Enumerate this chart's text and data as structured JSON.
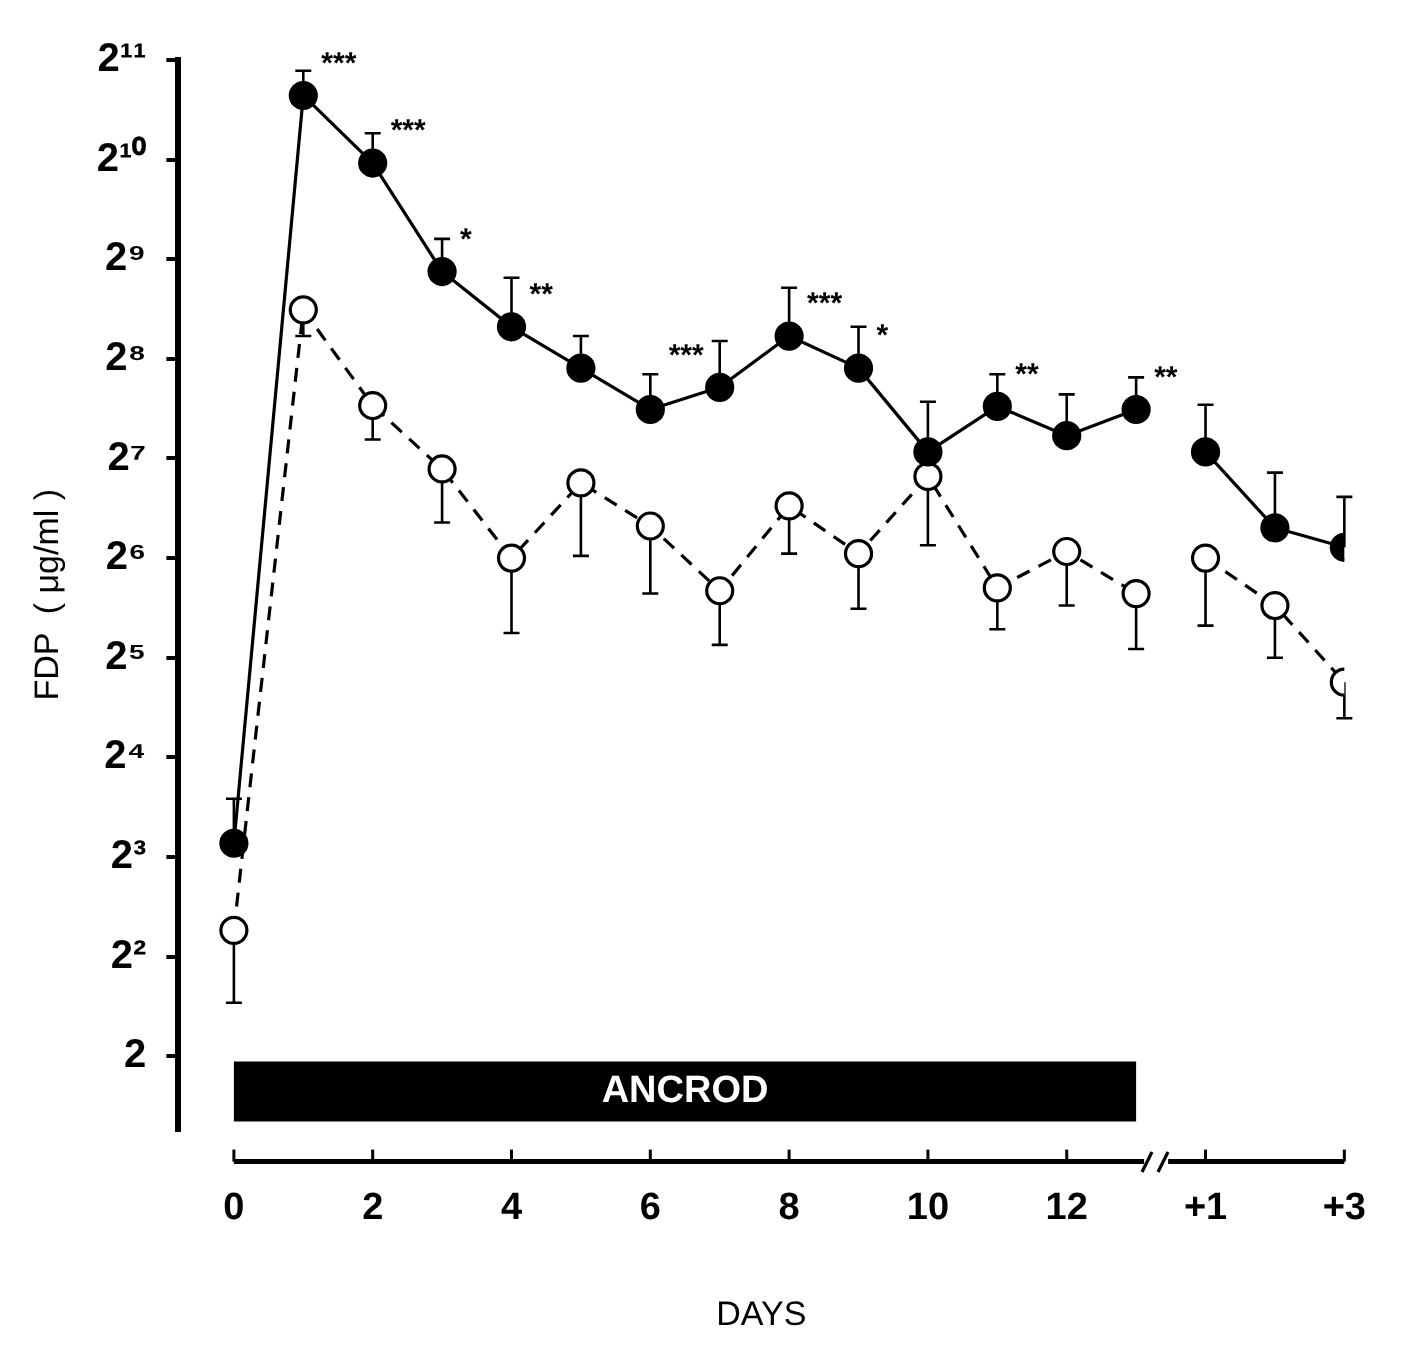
{
  "chart_data": {
    "type": "line",
    "xlabel": "DAYS",
    "ylabel": "FDP  ( μg/ml )",
    "log": "y",
    "grid": false,
    "legend": false,
    "xlim": [
      -0.8,
      16
    ],
    "xticks": [
      0,
      2,
      4,
      6,
      8,
      10,
      12
    ],
    "x2lim": [
      -13.8,
      3
    ],
    "x2ticks": [
      {
        "value": 1,
        "label": "+1"
      },
      {
        "value": 3,
        "label": "+3"
      }
    ],
    "ylim": [
      1.2,
      2048
    ],
    "yticks": [
      2,
      {
        "value": 4,
        "label": "2²"
      },
      {
        "value": 8,
        "label": "2³"
      },
      {
        "value": 16,
        "label": "2⁴"
      },
      {
        "value": 32,
        "label": "2⁵"
      },
      {
        "value": 64,
        "label": "2⁶"
      },
      {
        "value": 128,
        "label": "2⁷"
      },
      {
        "value": 256,
        "label": "2⁸"
      },
      {
        "value": 512,
        "label": "2⁹"
      },
      {
        "value": 1024,
        "label": "2¹⁰"
      },
      {
        "value": 2048,
        "label": "2¹¹"
      }
    ],
    "bands": [
      {
        "axis": "x",
        "from": 0,
        "to": 13,
        "label": "ANCROD",
        "color": "#000000"
      }
    ],
    "series": [
      {
        "color": "#000000",
        "marker": "circle",
        "line_style": "solid",
        "x": [
          0,
          1,
          2,
          3,
          4,
          5,
          6,
          7,
          8,
          9,
          10,
          11,
          12,
          13
        ],
        "values": [
          8.8,
          1600,
          1000,
          470,
          320,
          240,
          180,
          210,
          300,
          240,
          134,
          184,
          150,
          180
        ],
        "errors": [
          [
            8.8,
            12
          ],
          [
            1600,
            1900
          ],
          [
            1000,
            1230
          ],
          [
            470,
            590
          ],
          [
            320,
            450
          ],
          [
            240,
            300
          ],
          [
            180,
            230
          ],
          [
            210,
            290
          ],
          [
            300,
            420
          ],
          [
            240,
            320
          ],
          [
            134,
            190
          ],
          [
            184,
            230
          ],
          [
            150,
            200
          ],
          [
            180,
            225
          ]
        ]
      },
      {
        "color": "#000000",
        "marker": "circle",
        "line_style": "dashed",
        "x": [
          0,
          1,
          2,
          3,
          4,
          5,
          6,
          7,
          8,
          9,
          10,
          11,
          12,
          13
        ],
        "values": [
          4.8,
          360,
          185,
          119,
          64,
          108,
          80,
          51,
          92,
          66,
          113,
          52,
          67,
          50
        ],
        "errors": [
          [
            2.9,
            4.8
          ],
          [
            300,
            360
          ],
          [
            146,
            185
          ],
          [
            82,
            119
          ],
          [
            38,
            64
          ],
          [
            65,
            108
          ],
          [
            50,
            80
          ],
          [
            35,
            51
          ],
          [
            66,
            92
          ],
          [
            45,
            66
          ],
          [
            70,
            113
          ],
          [
            39,
            52
          ],
          [
            46,
            67
          ],
          [
            34,
            50
          ]
        ]
      },
      {
        "color": "#000000",
        "marker": "circle",
        "line_style": "solid",
        "axis": "x2",
        "x": [
          1,
          2,
          3
        ],
        "values": [
          134,
          79,
          69
        ],
        "errors": [
          [
            134,
            186
          ],
          [
            79,
            116
          ],
          [
            69,
            98
          ]
        ]
      },
      {
        "color": "#000000",
        "marker": "circle",
        "line_style": "dashed",
        "axis": "x2",
        "x": [
          1,
          2,
          3
        ],
        "values": [
          64,
          46,
          27
        ],
        "errors": [
          [
            40,
            64
          ],
          [
            32,
            46
          ],
          [
            21,
            27
          ]
        ]
      }
    ],
    "annotations": [
      {
        "text": "***",
        "x": 1,
        "y": 1600
      },
      {
        "text": "***",
        "x": 2,
        "y": 1000
      },
      {
        "text": "*",
        "x": 3,
        "y": 470
      },
      {
        "text": "**",
        "x": 4,
        "y": 320
      },
      {
        "text": "***",
        "x": 7,
        "y": 210
      },
      {
        "text": "***",
        "x": 8,
        "y": 300
      },
      {
        "text": "*",
        "x": 9,
        "y": 240
      },
      {
        "text": "**",
        "x": 11,
        "y": 184
      },
      {
        "text": "**",
        "x": 13,
        "y": 180
      }
    ]
  }
}
